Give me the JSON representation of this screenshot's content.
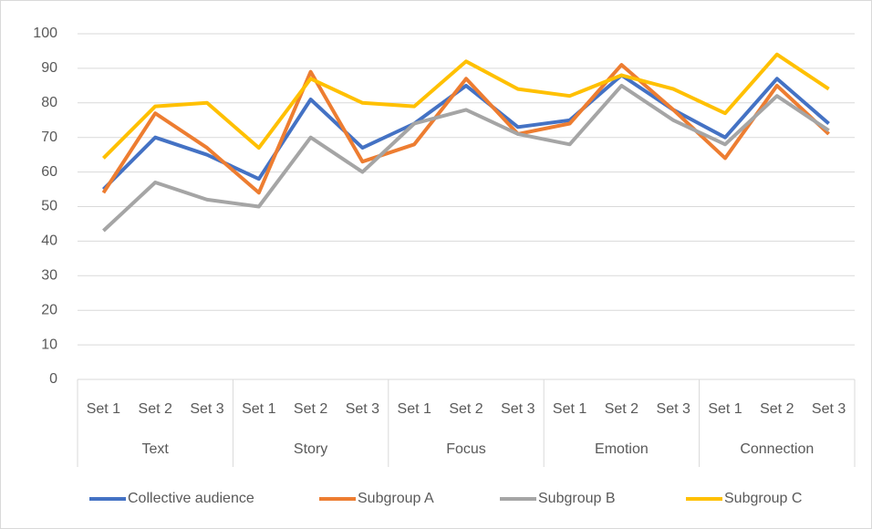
{
  "chart_data": {
    "type": "line",
    "categories": [
      "Set 1",
      "Set 2",
      "Set 3",
      "Set 1",
      "Set 2",
      "Set 3",
      "Set 1",
      "Set 2",
      "Set 3",
      "Set 1",
      "Set 2",
      "Set 3",
      "Set 1",
      "Set 2",
      "Set 3"
    ],
    "groups": [
      "Text",
      "Story",
      "Focus",
      "Emotion",
      "Connection"
    ],
    "series": [
      {
        "name": "Collective audience",
        "color": "#4472c4",
        "values": [
          55,
          70,
          65,
          58,
          81,
          67,
          74,
          85,
          73,
          75,
          88,
          78,
          70,
          87,
          74
        ]
      },
      {
        "name": "Subgroup A",
        "color": "#ed7d31",
        "values": [
          54,
          77,
          67,
          54,
          89,
          63,
          68,
          87,
          71,
          74,
          91,
          78,
          64,
          85,
          71
        ]
      },
      {
        "name": "Subgroup B",
        "color": "#a5a5a5",
        "values": [
          43,
          57,
          52,
          50,
          70,
          60,
          74,
          78,
          71,
          68,
          85,
          75,
          68,
          82,
          72
        ]
      },
      {
        "name": "Subgroup C",
        "color": "#ffc000",
        "values": [
          64,
          79,
          80,
          67,
          87,
          80,
          79,
          92,
          84,
          82,
          88,
          84,
          77,
          94,
          84
        ]
      }
    ],
    "ylim": [
      0,
      100
    ],
    "yticks": [
      0,
      10,
      20,
      30,
      40,
      50,
      60,
      70,
      80,
      90,
      100
    ],
    "grid": true,
    "legend": "bottom"
  }
}
